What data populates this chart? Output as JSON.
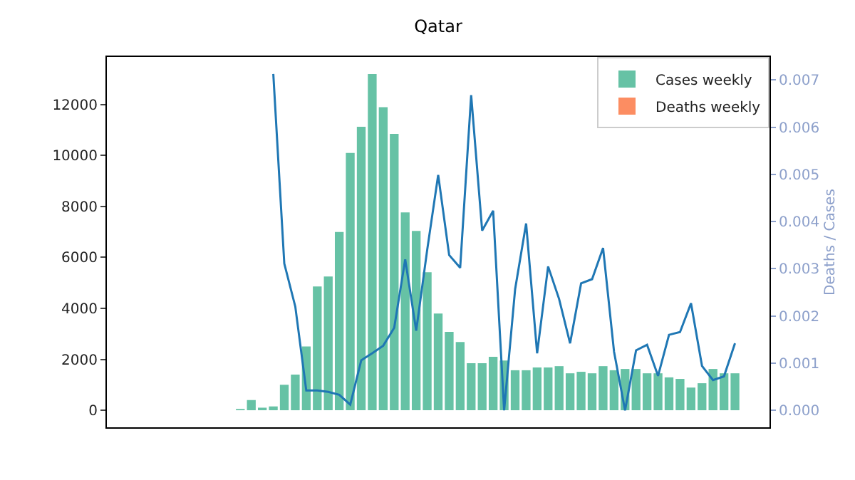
{
  "chart_data": {
    "type": "bar",
    "title": "Qatar",
    "y2label": "Deaths / Cases",
    "categories": [
      null,
      null,
      null,
      null,
      null,
      null,
      null,
      null,
      null,
      null,
      null,
      null,
      null,
      null,
      null,
      null,
      null,
      null,
      null,
      null,
      null,
      null,
      null,
      null,
      null,
      null,
      null,
      null,
      null,
      null,
      null,
      null,
      null,
      null,
      null,
      null,
      null,
      null,
      null,
      null,
      null,
      null,
      null,
      null,
      null,
      null,
      null,
      null,
      null,
      null,
      null,
      null,
      null,
      null,
      null
    ],
    "series": [
      {
        "name": "Cases weekly",
        "color": "#66c2a5",
        "values": [
          0,
          0,
          0,
          0,
          0,
          0,
          0,
          0,
          0,
          50,
          400,
          100,
          150,
          1000,
          1400,
          2500,
          4860,
          5250,
          7000,
          10100,
          11130,
          13200,
          11900,
          10850,
          7770,
          7040,
          5420,
          3800,
          3080,
          2680,
          1850,
          1850,
          2100,
          1950,
          1570,
          1570,
          1680,
          1680,
          1730,
          1450,
          1510,
          1450,
          1730,
          1570,
          1620,
          1620,
          1450,
          1450,
          1290,
          1230,
          890,
          1060,
          1620,
          1450,
          1450
        ]
      },
      {
        "name": "Deaths weekly",
        "color": "#fc8d62",
        "values": [
          0,
          0,
          0,
          0,
          0,
          0,
          0,
          0,
          0,
          0,
          0,
          0,
          0,
          0,
          0,
          0,
          0,
          0,
          0,
          0,
          0,
          0,
          0,
          0,
          0,
          0,
          0,
          0,
          0,
          0,
          0,
          0,
          0,
          0,
          0,
          0,
          0,
          0,
          0,
          0,
          0,
          0,
          0,
          0,
          0,
          0,
          0,
          0,
          0,
          0,
          0,
          0,
          0,
          0,
          0
        ]
      },
      {
        "type": "line",
        "axis": "y2",
        "color": "#1f77b4",
        "values": [
          null,
          null,
          null,
          null,
          null,
          null,
          null,
          null,
          null,
          null,
          null,
          null,
          0.00713,
          0.00311,
          0.0022,
          0.00042,
          0.00042,
          0.00039,
          0.00033,
          0.00012,
          0.00106,
          0.00121,
          0.00137,
          0.00175,
          0.0032,
          0.00169,
          0.0034,
          0.00499,
          0.00329,
          0.00302,
          0.00668,
          0.00381,
          0.00423,
          0.0,
          0.00257,
          0.00396,
          0.00121,
          0.00305,
          0.00236,
          0.00142,
          0.00269,
          0.00278,
          0.00344,
          0.00124,
          0.0,
          0.00127,
          0.00139,
          0.00073,
          0.0016,
          0.00166,
          0.00227,
          0.00094,
          0.00064,
          0.00072,
          0.00142
        ]
      }
    ],
    "ylim": [
      -670,
      13870
    ],
    "yticks": [
      0,
      2000,
      4000,
      6000,
      8000,
      10000,
      12000
    ],
    "y2lim": [
      -0.00036,
      0.00749
    ],
    "y2ticks": [
      {
        "value": 0,
        "label": "0.000"
      },
      {
        "value": 0.001,
        "label": "0.001"
      },
      {
        "value": 0.002,
        "label": "0.002"
      },
      {
        "value": 0.003,
        "label": "0.003"
      },
      {
        "value": 0.004,
        "label": "0.004"
      },
      {
        "value": 0.005,
        "label": "0.005"
      },
      {
        "value": 0.006,
        "label": "0.006"
      },
      {
        "value": 0.007,
        "label": "0.007"
      }
    ],
    "legend": "top right",
    "grid": false
  }
}
